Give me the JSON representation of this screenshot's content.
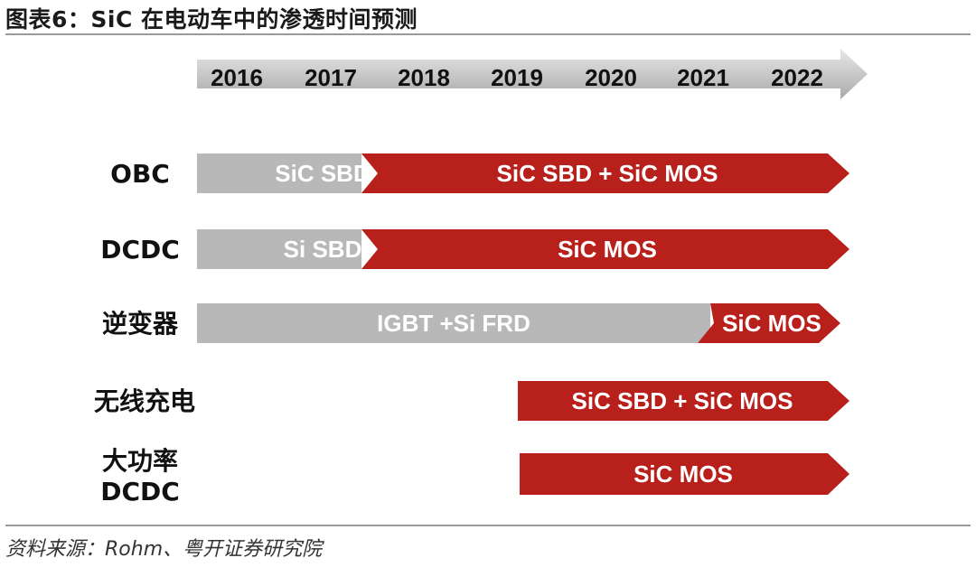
{
  "title": "图表6：SiC 在电动车中的渗透时间预测",
  "source": "资料来源：Rohm、粤开证券研究院",
  "colors": {
    "gray": "#b8b8b8",
    "red": "#b8201c",
    "axis": "#a9a9a9",
    "white": "#ffffff"
  },
  "timeline": {
    "years": [
      "2016",
      "2017",
      "2018",
      "2019",
      "2020",
      "2021",
      "2022"
    ]
  },
  "rows": [
    {
      "label": "OBC",
      "segments": [
        {
          "text": "SiC SBD",
          "color": "gray",
          "from": 2016,
          "to": 2017.8
        },
        {
          "text": "SiC SBD + SiC MOS",
          "color": "red",
          "from": 2017.8,
          "to": 2023
        }
      ]
    },
    {
      "label": "DCDC",
      "segments": [
        {
          "text": "Si SBD",
          "color": "gray",
          "from": 2016,
          "to": 2017.8
        },
        {
          "text": "SiC MOS",
          "color": "red",
          "from": 2017.8,
          "to": 2023
        }
      ]
    },
    {
      "label": "逆变器",
      "segments": [
        {
          "text": "IGBT +Si FRD",
          "color": "gray",
          "from": 2016,
          "to": 2021.5
        },
        {
          "text": "SiC MOS",
          "color": "red",
          "from": 2021.5,
          "to": 2023
        }
      ]
    },
    {
      "label": "无线充电",
      "segments": [
        {
          "text": "SiC SBD + SiC MOS",
          "color": "red",
          "from": 2019.5,
          "to": 2023
        }
      ]
    },
    {
      "label_lines": [
        "大功率",
        "DCDC"
      ],
      "segments": [
        {
          "text": "SiC MOS",
          "color": "red",
          "from": 2019.5,
          "to": 2023
        }
      ]
    }
  ]
}
